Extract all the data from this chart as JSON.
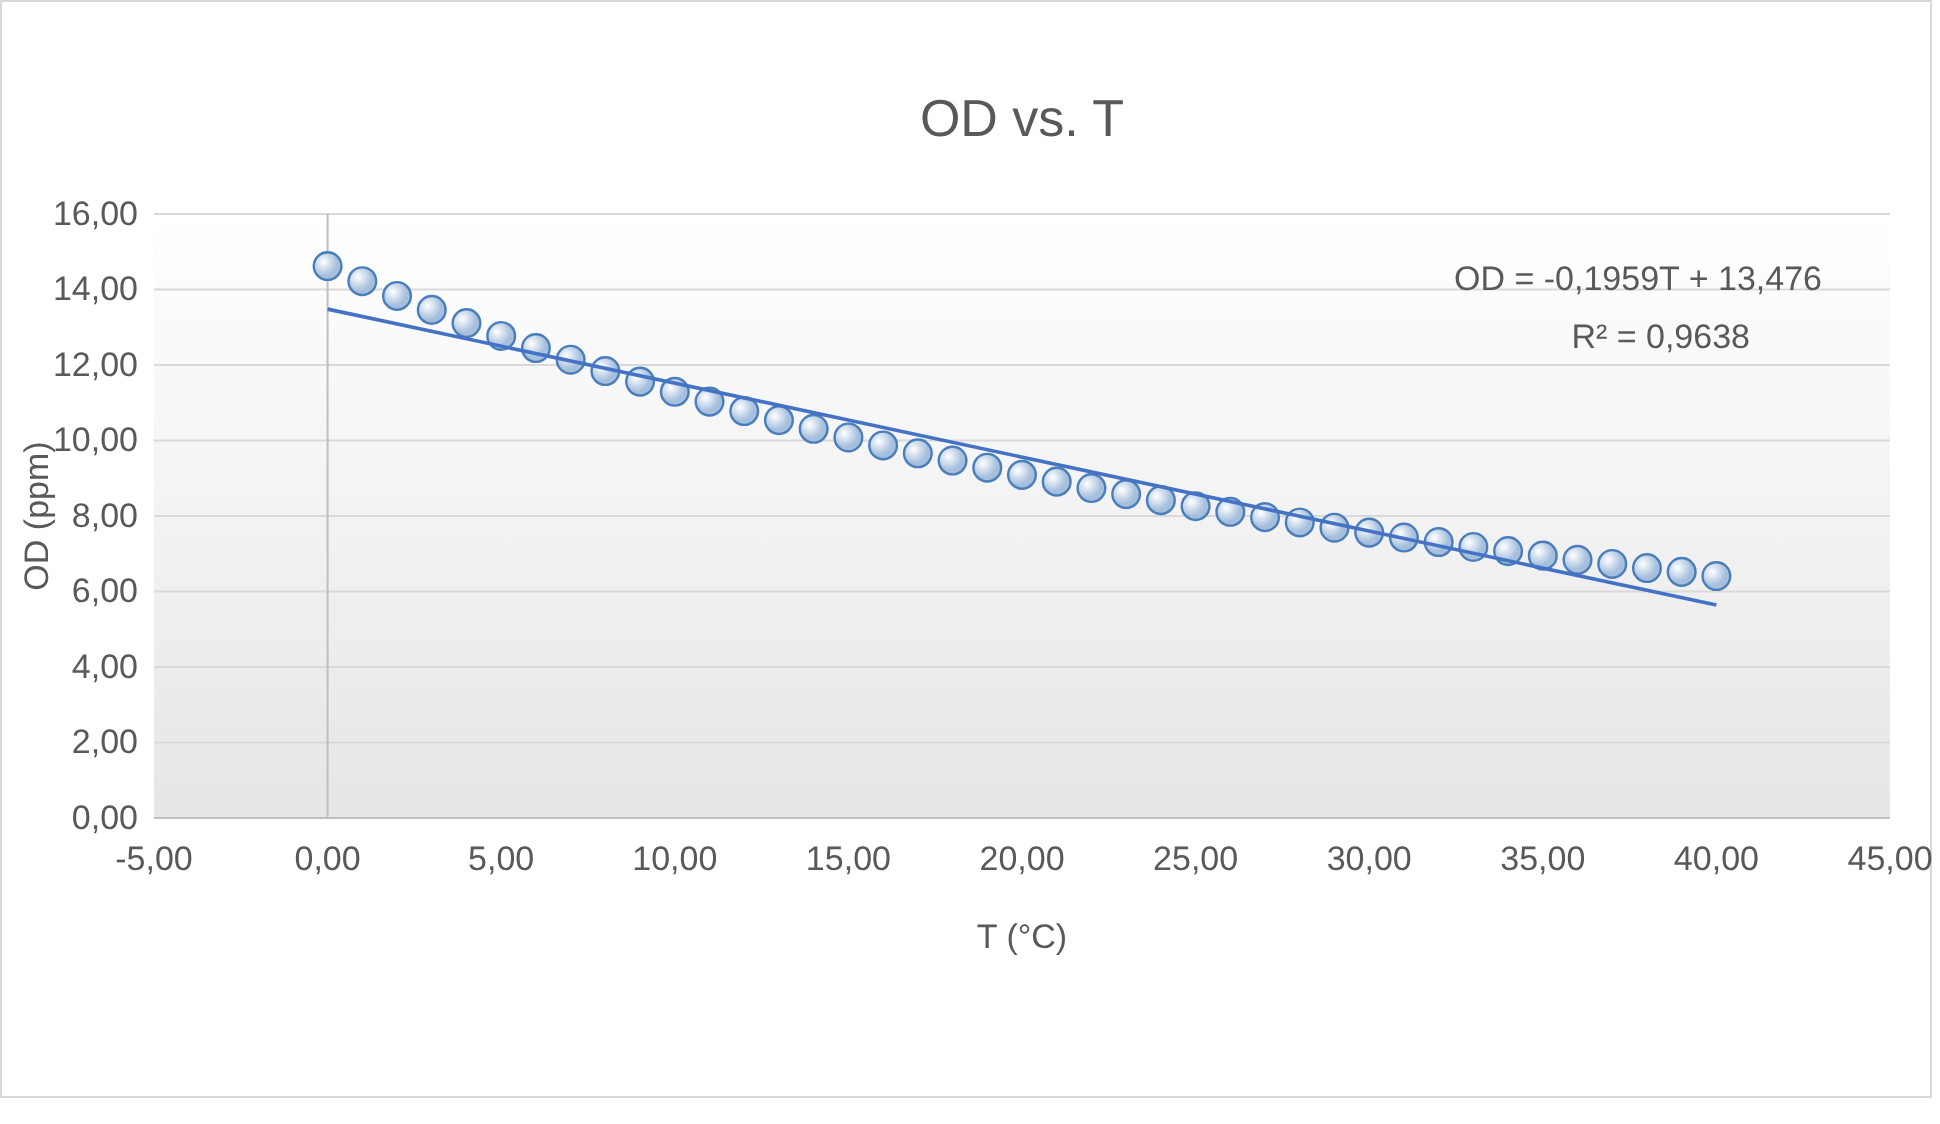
{
  "chart_data": {
    "type": "scatter",
    "title": "OD vs. T",
    "xlabel": "T (°C)",
    "ylabel": "OD (ppm)",
    "x": [
      0,
      1,
      2,
      3,
      4,
      5,
      6,
      7,
      8,
      9,
      10,
      11,
      12,
      13,
      14,
      15,
      16,
      17,
      18,
      19,
      20,
      21,
      22,
      23,
      24,
      25,
      26,
      27,
      28,
      29,
      30,
      31,
      32,
      33,
      34,
      35,
      36,
      37,
      38,
      39,
      40
    ],
    "series": [
      {
        "color": "#4a7ebb",
        "marker": "circle",
        "values": [
          14.62,
          14.22,
          13.83,
          13.46,
          13.11,
          12.77,
          12.45,
          12.14,
          11.84,
          11.56,
          11.29,
          11.03,
          10.78,
          10.54,
          10.31,
          10.08,
          9.87,
          9.66,
          9.47,
          9.28,
          9.09,
          8.91,
          8.74,
          8.58,
          8.42,
          8.26,
          8.11,
          7.97,
          7.83,
          7.69,
          7.56,
          7.43,
          7.31,
          7.18,
          7.07,
          6.95,
          6.84,
          6.73,
          6.62,
          6.52,
          6.41
        ]
      },
      {
        "type": "line",
        "color": "#4472c4",
        "marker": "none",
        "x": [
          0,
          40
        ],
        "values": [
          13.48,
          5.64
        ]
      }
    ],
    "xlim": [
      -5,
      45
    ],
    "xticks": [
      {
        "value": -5,
        "label": "-5,00"
      },
      {
        "value": 0,
        "label": "0,00"
      },
      {
        "value": 5,
        "label": "5,00"
      },
      {
        "value": 10,
        "label": "10,00"
      },
      {
        "value": 15,
        "label": "15,00"
      },
      {
        "value": 20,
        "label": "20,00"
      },
      {
        "value": 25,
        "label": "25,00"
      },
      {
        "value": 30,
        "label": "30,00"
      },
      {
        "value": 35,
        "label": "35,00"
      },
      {
        "value": 40,
        "label": "40,00"
      },
      {
        "value": 45,
        "label": "45,00"
      }
    ],
    "ylim": [
      0,
      16
    ],
    "yticks": [
      {
        "value": 0,
        "label": "0,00"
      },
      {
        "value": 2,
        "label": "2,00"
      },
      {
        "value": 4,
        "label": "4,00"
      },
      {
        "value": 6,
        "label": "6,00"
      },
      {
        "value": 8,
        "label": "8,00"
      },
      {
        "value": 10,
        "label": "10,00"
      },
      {
        "value": 12,
        "label": "12,00"
      },
      {
        "value": 14,
        "label": "14,00"
      },
      {
        "value": 16,
        "label": "16,00"
      }
    ],
    "grid": "y",
    "line_style": "solid",
    "annotations": [
      "OD = -0,1959T + 13,476",
      "R² = 0,9638"
    ]
  }
}
